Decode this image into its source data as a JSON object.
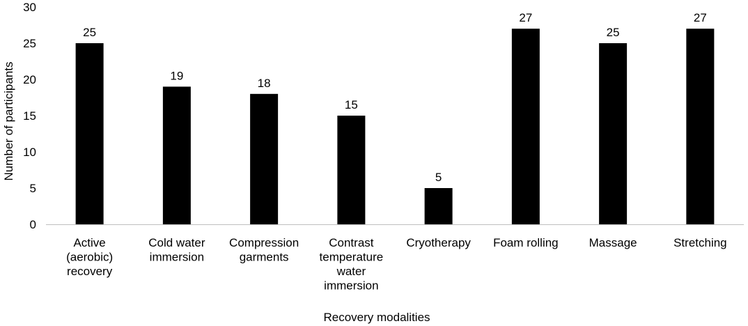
{
  "chart_data": {
    "type": "bar",
    "title": "",
    "xlabel": "Recovery modalities",
    "ylabel": "Number of participants",
    "ylim": [
      0,
      30
    ],
    "yticks": [
      0,
      5,
      10,
      15,
      20,
      25,
      30
    ],
    "grid": false,
    "legend": "none",
    "bar_color": "#000000",
    "categories": [
      [
        "Active",
        "(aerobic)",
        "recovery"
      ],
      [
        "Cold water",
        "immersion"
      ],
      [
        "Compression",
        "garments"
      ],
      [
        "Contrast",
        "temperature",
        "water",
        "immersion"
      ],
      [
        "Cryotherapy"
      ],
      [
        "Foam rolling"
      ],
      [
        "Massage"
      ],
      [
        "Stretching"
      ]
    ],
    "values": [
      25,
      19,
      18,
      15,
      5,
      27,
      25,
      27
    ]
  }
}
